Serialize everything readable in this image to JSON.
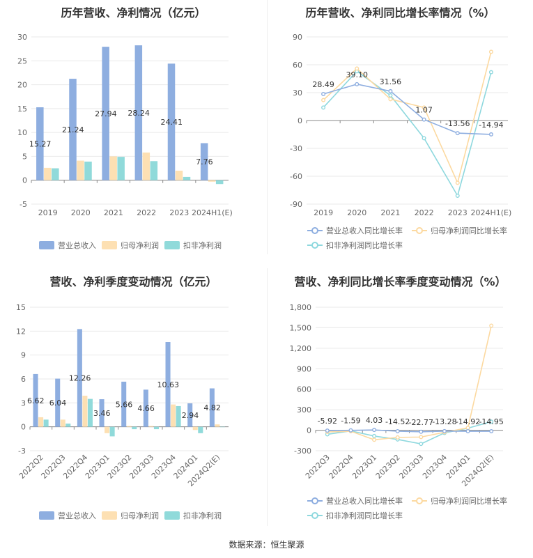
{
  "source": "数据来源：恒生聚源",
  "colors": {
    "revenue": "#8eaee0",
    "net": "#fde0b3",
    "deducted": "#90dada",
    "rev_line": "#8eaee0",
    "net_line": "#fcd9a0",
    "ded_line": "#8ed8de"
  },
  "chart_data": [
    {
      "id": "annual_amounts",
      "type": "bar",
      "title": "历年营收、净利情况（亿元）",
      "categories": [
        "2019",
        "2020",
        "2021",
        "2022",
        "2023",
        "2024H1(E)"
      ],
      "ylim": [
        -5,
        30
      ],
      "yticks": [
        "30",
        "25",
        "20",
        "15",
        "10",
        "5",
        "0",
        "-5"
      ],
      "series": [
        {
          "name": "营业总收入",
          "values": [
            15.27,
            21.24,
            27.94,
            28.24,
            24.41,
            7.76
          ]
        },
        {
          "name": "归母净利润",
          "values": [
            2.6,
            4.1,
            5.0,
            5.8,
            2.0,
            -0.3
          ]
        },
        {
          "name": "扣非净利润",
          "values": [
            2.5,
            3.9,
            4.9,
            4.0,
            0.7,
            -0.8
          ]
        }
      ],
      "data_labels": [
        "15.27",
        "21.24",
        "27.94",
        "28.24",
        "24.41",
        "7.76"
      ],
      "legend": [
        "营业总收入",
        "归母净利润",
        "扣非净利润"
      ],
      "legend_position": "bottom"
    },
    {
      "id": "annual_growth",
      "type": "line",
      "title": "历年营收、净利同比增长率情况（%）",
      "categories": [
        "2019",
        "2020",
        "2021",
        "2022",
        "2023",
        "2024H1(E)"
      ],
      "ylim": [
        -90,
        90
      ],
      "yticks": [
        "90",
        "60",
        "30",
        "0",
        "-30",
        "-60",
        "-90"
      ],
      "series": [
        {
          "name": "营业总收入同比增长率",
          "values": [
            28.49,
            39.1,
            31.56,
            1.07,
            -13.56,
            -14.94
          ]
        },
        {
          "name": "归母净利润同比增长率",
          "values": [
            22,
            56,
            23,
            14,
            -67,
            74
          ]
        },
        {
          "name": "扣非净利润同比增长率",
          "values": [
            14,
            53,
            27,
            -19,
            -81,
            52
          ]
        }
      ],
      "data_labels": [
        "28.49",
        "39.10",
        "31.56",
        "1.07",
        "-13.56",
        "-14.94"
      ],
      "legend": [
        "营业总收入同比增长率",
        "归母净利润同比增长率",
        "扣非净利润同比增长率"
      ],
      "legend_position": "bottom"
    },
    {
      "id": "quarterly_amounts",
      "type": "bar",
      "title": "营收、净利季度变动情况（亿元）",
      "categories": [
        "2022Q2",
        "2022Q3",
        "2022Q4",
        "2023Q1",
        "2023Q2",
        "2023Q3",
        "2023Q4",
        "2024Q1",
        "2024Q2(E)"
      ],
      "ylim": [
        -3,
        15
      ],
      "yticks": [
        "15",
        "12",
        "9",
        "6",
        "3",
        "0",
        "-3"
      ],
      "series": [
        {
          "name": "营业总收入",
          "values": [
            6.62,
            6.04,
            12.26,
            3.46,
            5.66,
            4.66,
            10.63,
            2.94,
            4.82
          ]
        },
        {
          "name": "归母净利润",
          "values": [
            1.2,
            0.9,
            3.9,
            -0.8,
            0.1,
            0.1,
            2.8,
            -0.4,
            0.3
          ]
        },
        {
          "name": "扣非净利润",
          "values": [
            0.9,
            0.4,
            3.5,
            -1.2,
            -0.3,
            -0.3,
            2.6,
            -0.8,
            0.0
          ]
        }
      ],
      "data_labels": [
        "6.62",
        "6.04",
        "12.26",
        "3.46",
        "5.66",
        "4.66",
        "10.63",
        "2.94",
        "4.82"
      ],
      "legend": [
        "营业总收入",
        "归母净利润",
        "扣非净利润"
      ],
      "legend_position": "bottom"
    },
    {
      "id": "quarterly_growth",
      "type": "line",
      "title": "营收、净利同比增长率季度变动情况（%）",
      "categories": [
        "2022Q3",
        "2022Q4",
        "2023Q1",
        "2023Q2",
        "2023Q3",
        "2023Q4",
        "2024Q1",
        "2024Q2(E)"
      ],
      "ylim": [
        -300,
        1800
      ],
      "yticks": [
        "1,800",
        "1,500",
        "1,200",
        "900",
        "600",
        "300",
        "0",
        "-300"
      ],
      "series": [
        {
          "name": "营业总收入同比增长率",
          "values": [
            -5.92,
            -1.59,
            4.03,
            -14.52,
            -22.77,
            -13.28,
            -14.92,
            -14.95
          ]
        },
        {
          "name": "归母净利润同比增长率",
          "values": [
            -25,
            -15,
            -140,
            -105,
            -100,
            -30,
            35,
            1530
          ]
        },
        {
          "name": "扣非净利润同比增长率",
          "values": [
            -60,
            -10,
            -85,
            -135,
            -200,
            -40,
            30,
            125
          ]
        }
      ],
      "data_labels": [
        "-5.92",
        "-1.59",
        "4.03",
        "-14.52",
        "-22.77",
        "-13.28",
        "-14.92",
        "-14.95"
      ],
      "legend": [
        "营业总收入同比增长率",
        "归母净利润同比增长率",
        "扣非净利润同比增长率"
      ],
      "legend_position": "bottom"
    }
  ]
}
